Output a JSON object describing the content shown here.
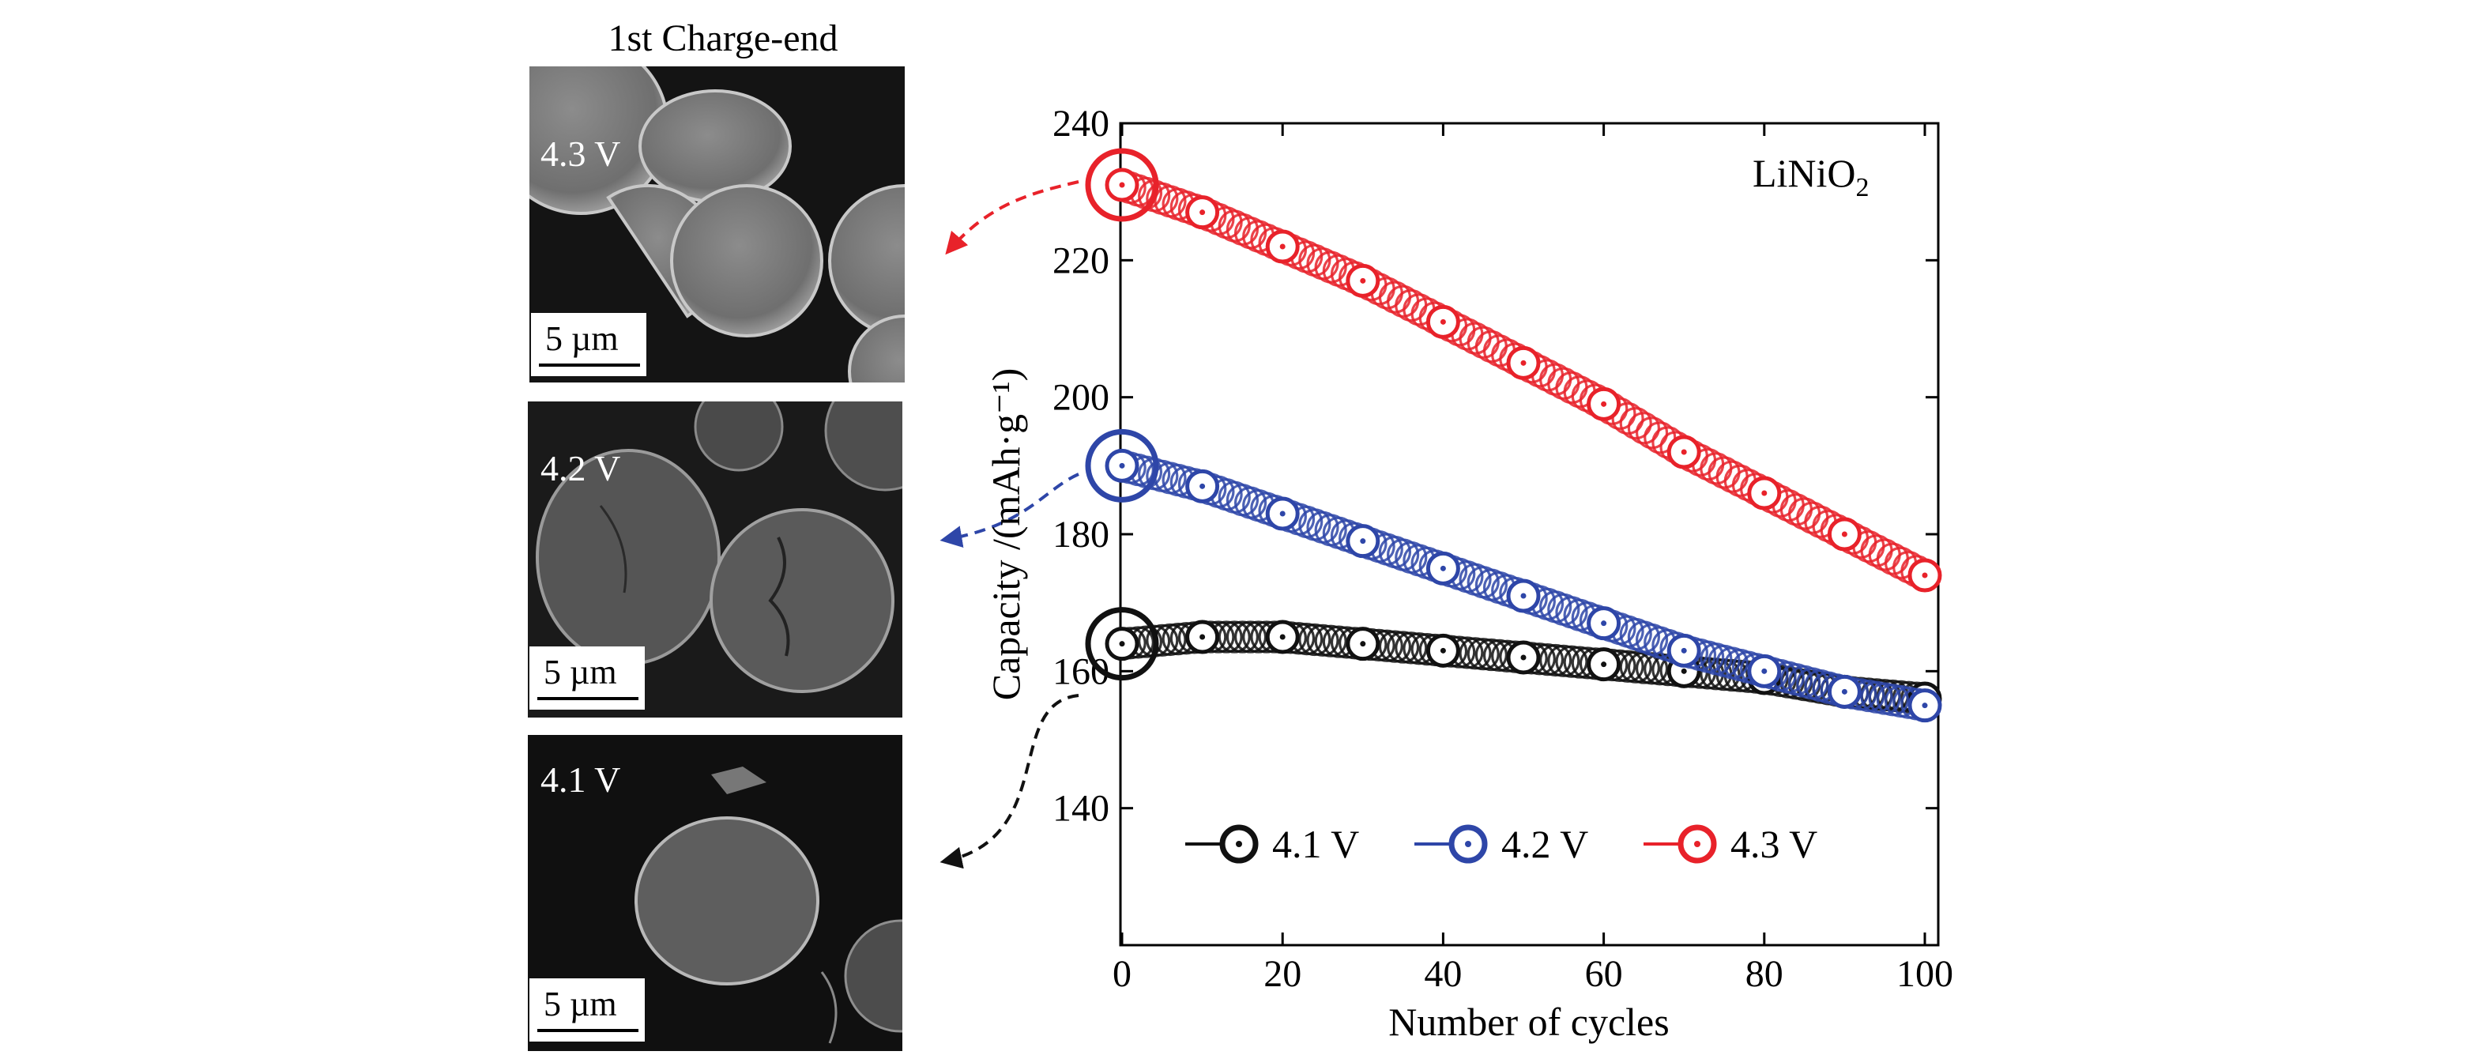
{
  "sem": {
    "heading": "1st Charge-end",
    "panels": [
      {
        "voltage": "4.3 V",
        "scale_bar": "5 µm"
      },
      {
        "voltage": "4.2 V",
        "scale_bar": "5 µm"
      },
      {
        "voltage": "4.1 V",
        "scale_bar": "5 µm"
      }
    ]
  },
  "chart_data": {
    "type": "scatter",
    "annotation": "LiNiO",
    "annotation_subscript": "2",
    "xlabel": "Number of cycles",
    "ylabel": "Capacity /(mAh·g⁻¹)",
    "xlim": [
      0,
      100
    ],
    "ylim": [
      120,
      240
    ],
    "xticks": [
      0,
      20,
      40,
      60,
      80,
      100
    ],
    "yticks": [
      140,
      160,
      180,
      200,
      220,
      240
    ],
    "grid": false,
    "legend_position": "bottom",
    "x": [
      0,
      10,
      20,
      30,
      40,
      50,
      60,
      70,
      80,
      90,
      100
    ],
    "series": [
      {
        "name": "4.1 V",
        "color": "#111111",
        "values": [
          164,
          165,
          165,
          164,
          163,
          162,
          161,
          160,
          159,
          157,
          156
        ]
      },
      {
        "name": "4.2 V",
        "color": "#2e46a8",
        "values": [
          190,
          187,
          183,
          179,
          175,
          171,
          167,
          163,
          160,
          157,
          155
        ]
      },
      {
        "name": "4.3 V",
        "color": "#e8222a",
        "values": [
          231,
          227,
          222,
          217,
          211,
          205,
          199,
          192,
          186,
          180,
          174
        ]
      }
    ]
  }
}
